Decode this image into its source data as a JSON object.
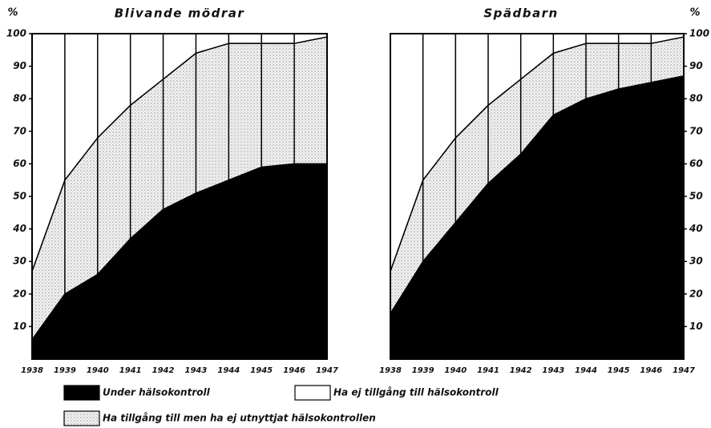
{
  "chart_data": [
    {
      "type": "area",
      "stacked": true,
      "title": "Blivande mödrar",
      "ylabel": "%",
      "x": [
        1938,
        1939,
        1940,
        1941,
        1942,
        1943,
        1944,
        1945,
        1946,
        1947
      ],
      "xlim": [
        1938,
        1947
      ],
      "xticks": [
        1938,
        1939,
        1940,
        1941,
        1942,
        1943,
        1944,
        1945,
        1946,
        1947
      ],
      "ylim": [
        0,
        100
      ],
      "yticks": [
        10,
        20,
        30,
        40,
        50,
        60,
        70,
        80,
        90,
        100
      ],
      "yaxis_side": "left",
      "grid": "x",
      "series": [
        {
          "name": "Under hälsokontroll",
          "color": "#000000",
          "values": [
            6,
            20,
            26,
            37,
            46,
            51,
            55,
            59,
            60,
            60
          ]
        },
        {
          "name": "Ha tillgång till men ha ej utnyttjat hälsokontrollen",
          "color": "dotted",
          "values": [
            21,
            35,
            42,
            41,
            40,
            43,
            42,
            38,
            37,
            39
          ]
        },
        {
          "name": "Ha ej tillgång till hälsokontroll",
          "color": "#ffffff",
          "values": [
            73,
            45,
            32,
            22,
            14,
            6,
            3,
            3,
            3,
            1
          ]
        }
      ]
    },
    {
      "type": "area",
      "stacked": true,
      "title": "Spädbarn",
      "ylabel": "%",
      "x": [
        1938,
        1939,
        1940,
        1941,
        1942,
        1943,
        1944,
        1945,
        1946,
        1947
      ],
      "xlim": [
        1938,
        1947
      ],
      "xticks": [
        1938,
        1939,
        1940,
        1941,
        1942,
        1943,
        1944,
        1945,
        1946,
        1947
      ],
      "ylim": [
        0,
        100
      ],
      "yticks": [
        10,
        20,
        30,
        40,
        50,
        60,
        70,
        80,
        90,
        100
      ],
      "yaxis_side": "right",
      "grid": "x",
      "series": [
        {
          "name": "Under hälsokontroll",
          "color": "#000000",
          "values": [
            14,
            30,
            42,
            54,
            63,
            75,
            80,
            83,
            85,
            87
          ]
        },
        {
          "name": "Ha tillgång till men ha ej utnyttjat hälsokontrollen",
          "color": "dotted",
          "values": [
            13,
            25,
            26,
            24,
            23,
            19,
            17,
            14,
            12,
            12
          ]
        },
        {
          "name": "Ha ej tillgång till hälsokontroll",
          "color": "#ffffff",
          "values": [
            73,
            45,
            32,
            22,
            14,
            6,
            3,
            3,
            3,
            1
          ]
        }
      ]
    }
  ]
}
